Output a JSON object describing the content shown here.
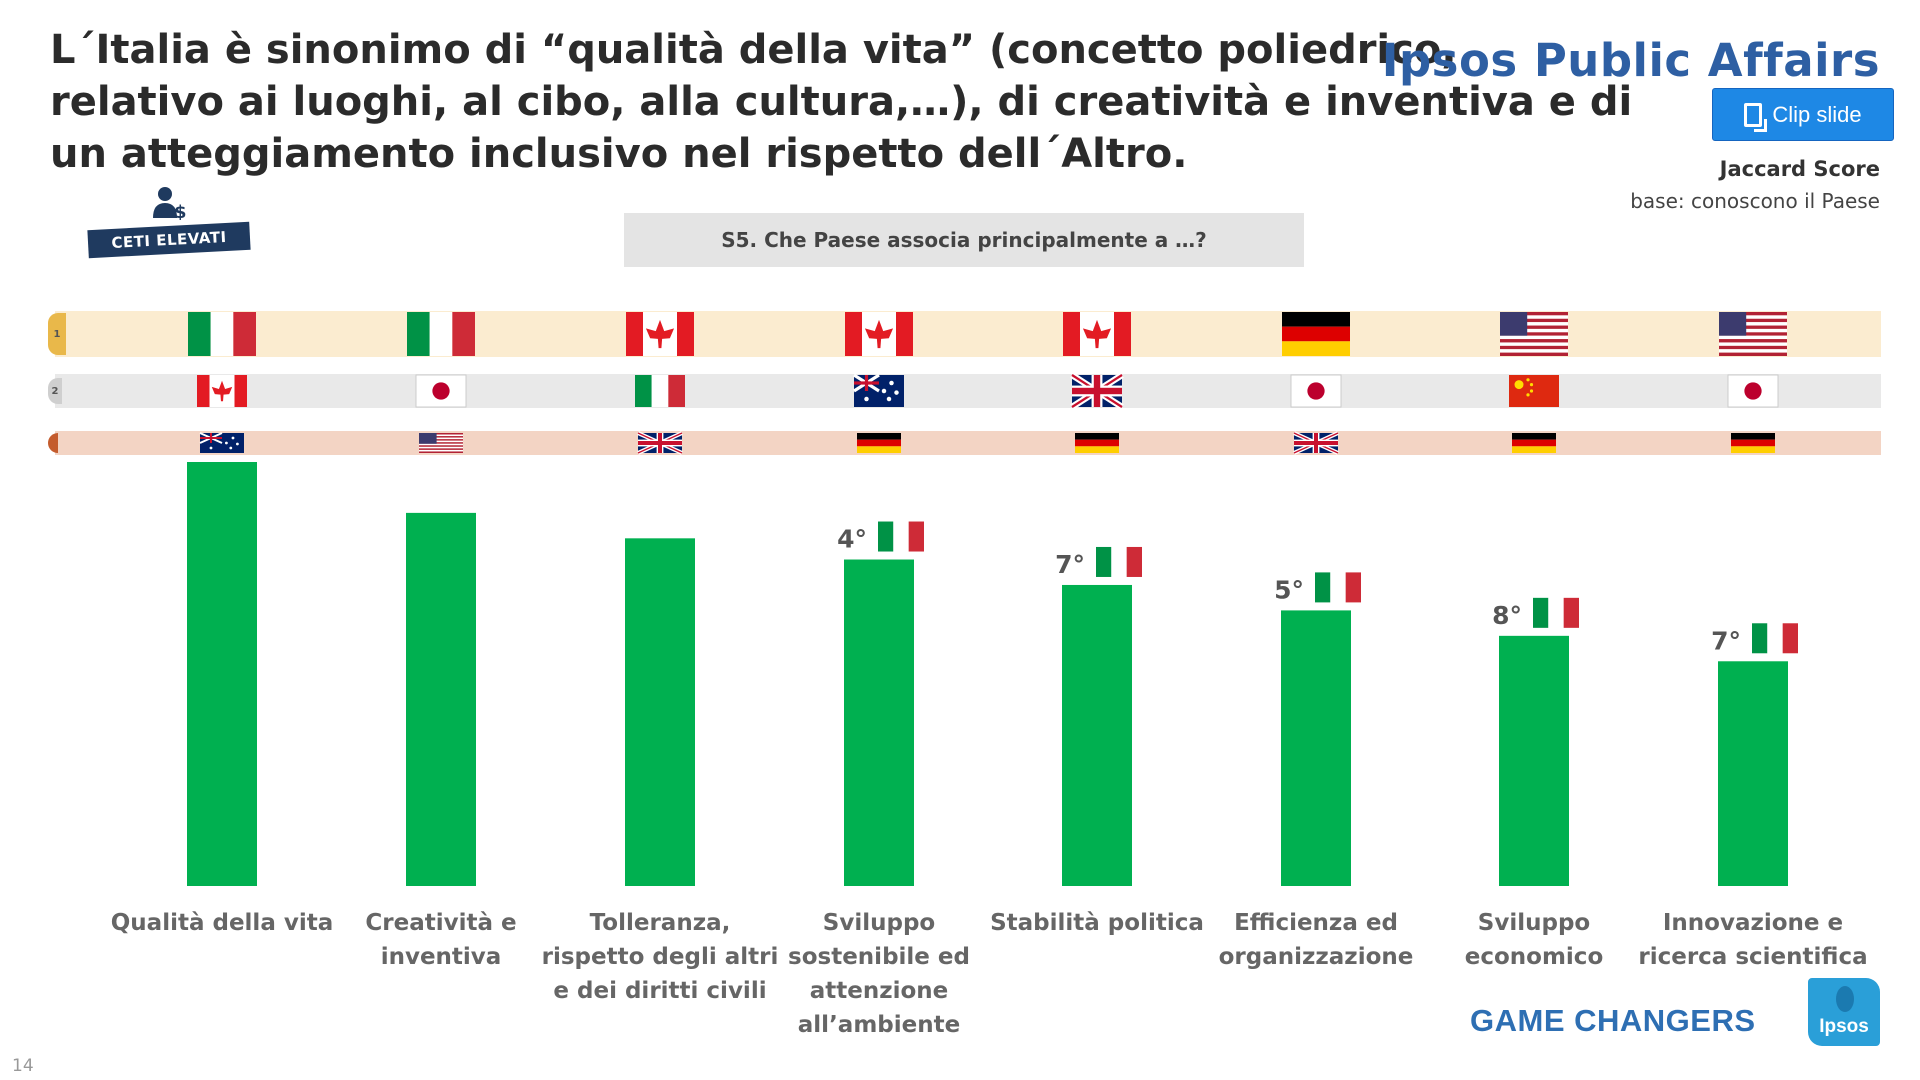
{
  "header": {
    "title_lines": [
      "L´Italia è sinonimo di “qualità della vita” (concetto poliedrico,",
      "relativo ai luoghi, al cibo, alla cultura,…), di creatività e inventiva e di",
      "un atteggiamento inclusivo nel rispetto dell´Altro."
    ],
    "brand": "Ipsos Public Affairs",
    "clip_button_label": "Clip slide",
    "score_label": "Jaccard Score",
    "base_label": "base: conoscono il Paese",
    "segment_badge": "CETI ELEVATI",
    "question": "S5. Che Paese associa principalmente a …?"
  },
  "rank_tabs": [
    "1",
    "2",
    ""
  ],
  "colors": {
    "bar": "#00b050",
    "band1": "#fbecd0",
    "band2": "#e9e9e9",
    "band3": "#f3d4c4"
  },
  "chart_data": {
    "type": "bar",
    "categories": [
      [
        "Qualità della vita"
      ],
      [
        "Creatività e",
        "inventiva"
      ],
      [
        "Tolleranza,",
        "rispetto degli altri",
        "e dei diritti civili"
      ],
      [
        "Sviluppo",
        "sostenibile ed",
        "attenzione",
        "all’ambiente"
      ],
      [
        "Stabilità politica"
      ],
      [
        "Efficienza ed",
        "organizzazione"
      ],
      [
        "Sviluppo",
        "economico"
      ],
      [
        "Innovazione e",
        "ricerca scientifica"
      ]
    ],
    "values": [
      100,
      88,
      82,
      77,
      71,
      65,
      59,
      53
    ],
    "value_note": "relative bar heights (no axis printed)",
    "ylim": [
      0,
      100
    ],
    "italy_rank": [
      "",
      "",
      "",
      "4°",
      "7°",
      "5°",
      "8°",
      "7°"
    ],
    "top_countries": [
      [
        "italy-flag",
        "canada-flag",
        "australia-flag"
      ],
      [
        "italy-flag",
        "japan-flag",
        "usa-flag"
      ],
      [
        "canada-flag",
        "italy-flag",
        "uk-flag"
      ],
      [
        "canada-flag",
        "australia-flag",
        "germany-flag"
      ],
      [
        "canada-flag",
        "uk-flag",
        "germany-flag"
      ],
      [
        "germany-flag",
        "japan-flag",
        "uk-flag"
      ],
      [
        "usa-flag",
        "china-flag",
        "germany-flag"
      ],
      [
        "usa-flag",
        "japan-flag",
        "germany-flag"
      ]
    ]
  },
  "footer": {
    "tagline": "GAME CHANGERS",
    "logo_text": "Ipsos",
    "page_number": "14"
  }
}
